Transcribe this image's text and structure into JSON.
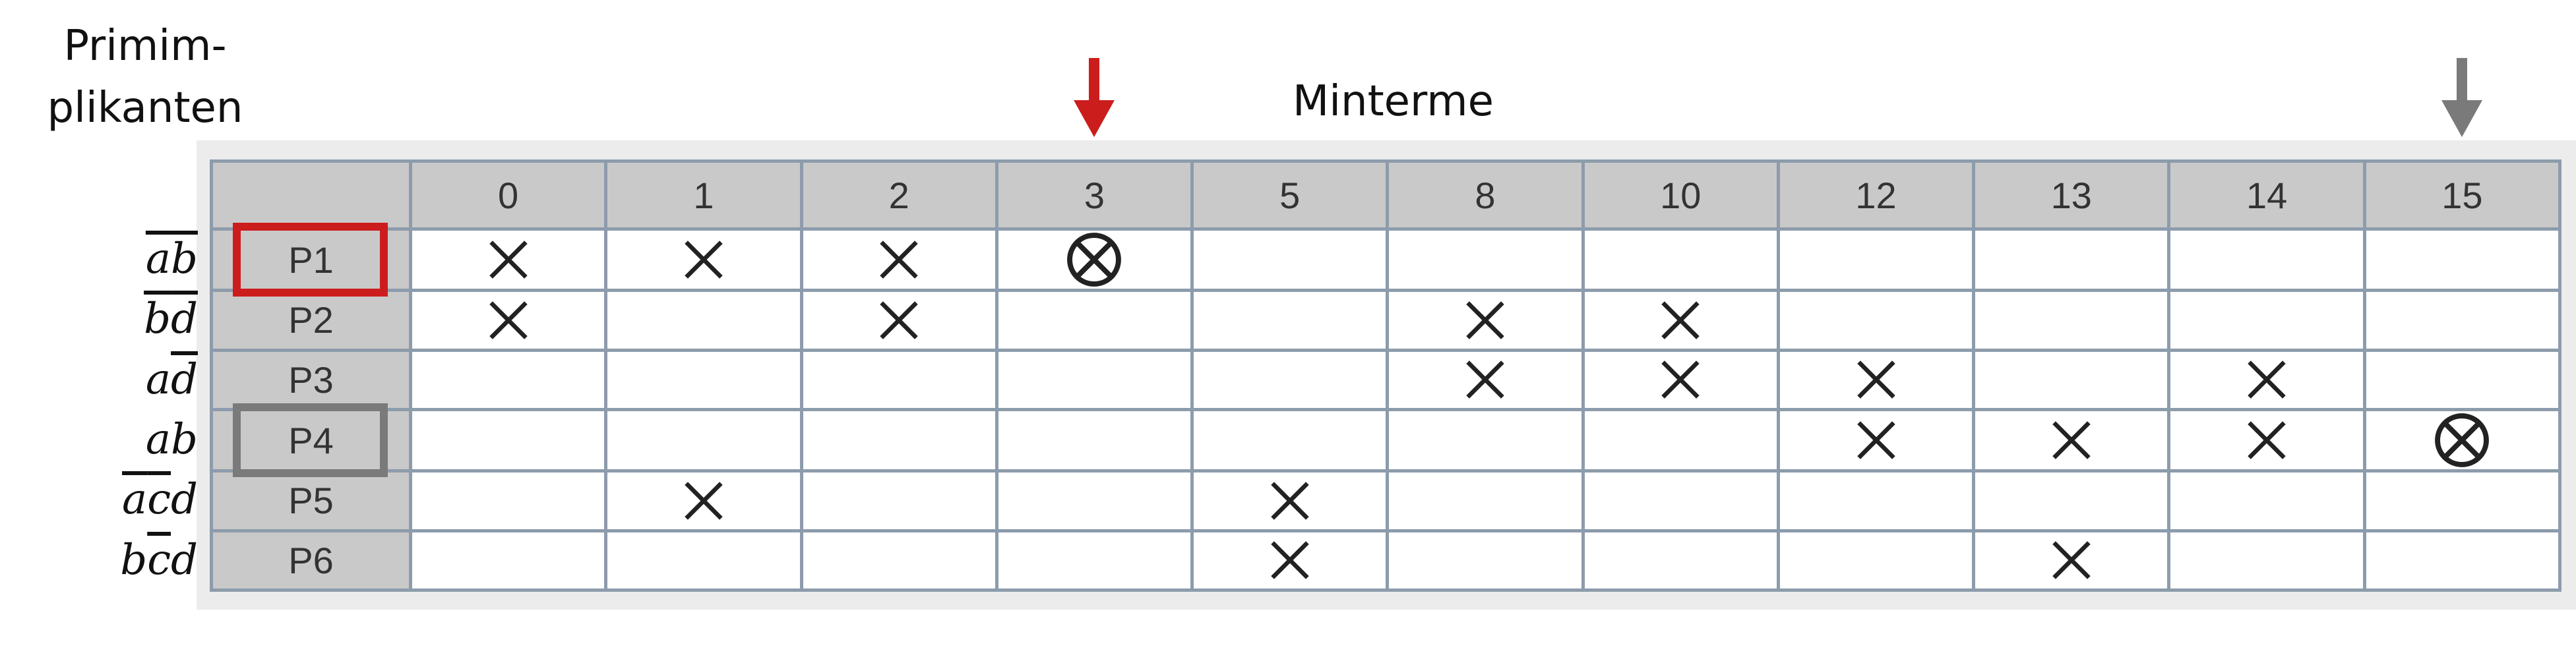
{
  "titles": {
    "primimplikanten_line1": "Primim-",
    "primimplikanten_line2": "plikanten",
    "minterme": "Minterme"
  },
  "colors": {
    "essential_highlight": "#cc1d1d",
    "secondary_highlight": "#7a7a7a",
    "grid_line": "#8d9cac",
    "header_bg": "#c9c9c9"
  },
  "minterms": [
    "0",
    "1",
    "2",
    "3",
    "5",
    "8",
    "10",
    "12",
    "13",
    "14",
    "15"
  ],
  "implicants": [
    {
      "label": "P1",
      "term": [
        {
          "v": "a",
          "neg": true
        },
        {
          "v": "b",
          "neg": true
        }
      ],
      "covers": [
        "x",
        "x",
        "x",
        "ox",
        "",
        "",
        "",
        "",
        "",
        "",
        ""
      ],
      "highlight": "red"
    },
    {
      "label": "P2",
      "term": [
        {
          "v": "b",
          "neg": true
        },
        {
          "v": "d",
          "neg": true
        }
      ],
      "covers": [
        "x",
        "",
        "x",
        "",
        "",
        "x",
        "x",
        "",
        "",
        "",
        ""
      ],
      "highlight": ""
    },
    {
      "label": "P3",
      "term": [
        {
          "v": "a",
          "neg": false
        },
        {
          "v": "d",
          "neg": true
        }
      ],
      "covers": [
        "",
        "",
        "",
        "",
        "",
        "x",
        "x",
        "x",
        "",
        "x",
        ""
      ],
      "highlight": ""
    },
    {
      "label": "P4",
      "term": [
        {
          "v": "a",
          "neg": false
        },
        {
          "v": "b",
          "neg": false
        }
      ],
      "covers": [
        "",
        "",
        "",
        "",
        "",
        "",
        "",
        "x",
        "x",
        "x",
        "ox"
      ],
      "highlight": "gray"
    },
    {
      "label": "P5",
      "term": [
        {
          "v": "a",
          "neg": true
        },
        {
          "v": "c",
          "neg": true
        },
        {
          "v": "d",
          "neg": false
        }
      ],
      "covers": [
        "",
        "x",
        "",
        "",
        "x",
        "",
        "",
        "",
        "",
        "",
        ""
      ],
      "highlight": ""
    },
    {
      "label": "P6",
      "term": [
        {
          "v": "b",
          "neg": false
        },
        {
          "v": "c",
          "neg": true
        },
        {
          "v": "d",
          "neg": false
        }
      ],
      "covers": [
        "",
        "",
        "",
        "",
        "x",
        "",
        "",
        "",
        "x",
        "",
        ""
      ],
      "highlight": ""
    }
  ],
  "arrows": [
    {
      "minterm": "3",
      "color": "#cc1d1d"
    },
    {
      "minterm": "15",
      "color": "#7a7a7a"
    }
  ]
}
